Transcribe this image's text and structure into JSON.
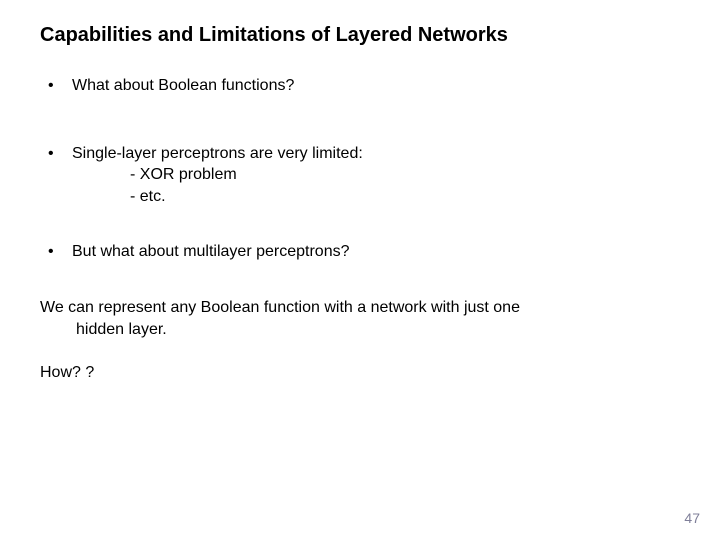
{
  "slide": {
    "title": "Capabilities and Limitations of Layered Networks",
    "title_fontsize": 20,
    "title_fontweight": "bold",
    "body_fontsize": 16,
    "background_color": "#ffffff",
    "text_color": "#000000",
    "bullet_char": "•",
    "bullets": [
      {
        "text": "What about Boolean functions?"
      },
      {
        "text": "Single-layer perceptrons are very limited:",
        "sub": [
          "- XOR problem",
          "- etc."
        ]
      },
      {
        "text": "But what about multilayer perceptrons?"
      }
    ],
    "para1_line1": "We can represent any Boolean function with a network with just one",
    "para1_line2": "hidden layer.",
    "para2": "How? ?",
    "page_number": "47",
    "page_number_color": "#7f7f99"
  }
}
